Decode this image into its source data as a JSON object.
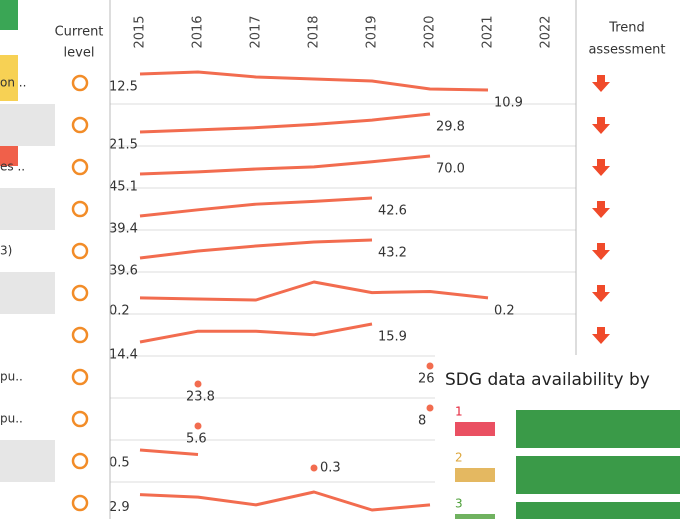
{
  "header": {
    "current_level": [
      "Current",
      "level"
    ],
    "trend": [
      "Trend",
      "assessment"
    ],
    "years": [
      "2015",
      "2016",
      "2017",
      "2018",
      "2019",
      "2020",
      "2021",
      "2022"
    ]
  },
  "rows": [
    {
      "label": "on ..",
      "values": [
        12.5,
        12.7,
        12.2,
        12.0,
        11.8,
        11.0,
        10.9,
        null
      ],
      "value_labels": [
        "12.5",
        null,
        null,
        null,
        null,
        null,
        "10.9",
        null
      ]
    },
    {
      "values": [
        21.5,
        22.5,
        23.5,
        25,
        27,
        29.8,
        null,
        null
      ],
      "value_labels": [
        "21.5",
        null,
        null,
        null,
        null,
        "29.8",
        null,
        null
      ]
    },
    {
      "label": "es ..",
      "values": [
        45.1,
        48,
        52,
        55,
        62,
        70,
        null,
        null
      ],
      "value_labels": [
        "45.1",
        null,
        null,
        null,
        null,
        "70.0",
        null,
        null
      ]
    },
    {
      "values": [
        39.4,
        40.5,
        41.5,
        42,
        42.6,
        null,
        null,
        null
      ],
      "value_labels": [
        "39.4",
        null,
        null,
        null,
        "42.6",
        null,
        null,
        null
      ]
    },
    {
      "label": "3)",
      "values": [
        39.6,
        41,
        42,
        42.8,
        43.2,
        null,
        null,
        null
      ],
      "value_labels": [
        "39.6",
        null,
        null,
        null,
        "43.2",
        null,
        null,
        null
      ]
    },
    {
      "values": [
        0.2,
        0.19,
        0.18,
        0.35,
        0.25,
        0.26,
        0.2,
        null
      ],
      "value_labels": [
        "0.2",
        null,
        null,
        null,
        null,
        null,
        "0.2",
        null
      ]
    },
    {
      "values": [
        14.4,
        15.3,
        15.3,
        15.0,
        15.9,
        null,
        null,
        null
      ],
      "value_labels": [
        "14.4",
        null,
        null,
        null,
        "15.9",
        null,
        null,
        null
      ]
    },
    {
      "label": "pu..",
      "values": [
        null,
        23.8,
        null,
        null,
        null,
        26,
        null,
        null
      ],
      "value_labels": [
        null,
        "23.8",
        null,
        null,
        null,
        "26",
        null,
        null
      ]
    },
    {
      "label": "pu..",
      "values": [
        null,
        5.6,
        null,
        null,
        null,
        8,
        null,
        null
      ],
      "value_labels": [
        null,
        "5.6",
        null,
        null,
        null,
        "8",
        null,
        null
      ]
    },
    {
      "values": [
        0.5,
        0.45,
        null,
        0.3,
        null,
        null,
        null,
        null
      ],
      "value_labels": [
        "0.5",
        null,
        null,
        "0.3",
        null,
        null,
        null,
        null
      ]
    },
    {
      "values": [
        2.9,
        2.85,
        2.7,
        2.95,
        2.6,
        2.7,
        null,
        null
      ],
      "value_labels": [
        "2.9",
        null,
        null,
        null,
        null,
        null,
        null,
        null
      ]
    }
  ],
  "overlay": {
    "title": "SDG data availability by",
    "goals": [
      "1",
      "2",
      "3"
    ]
  }
}
